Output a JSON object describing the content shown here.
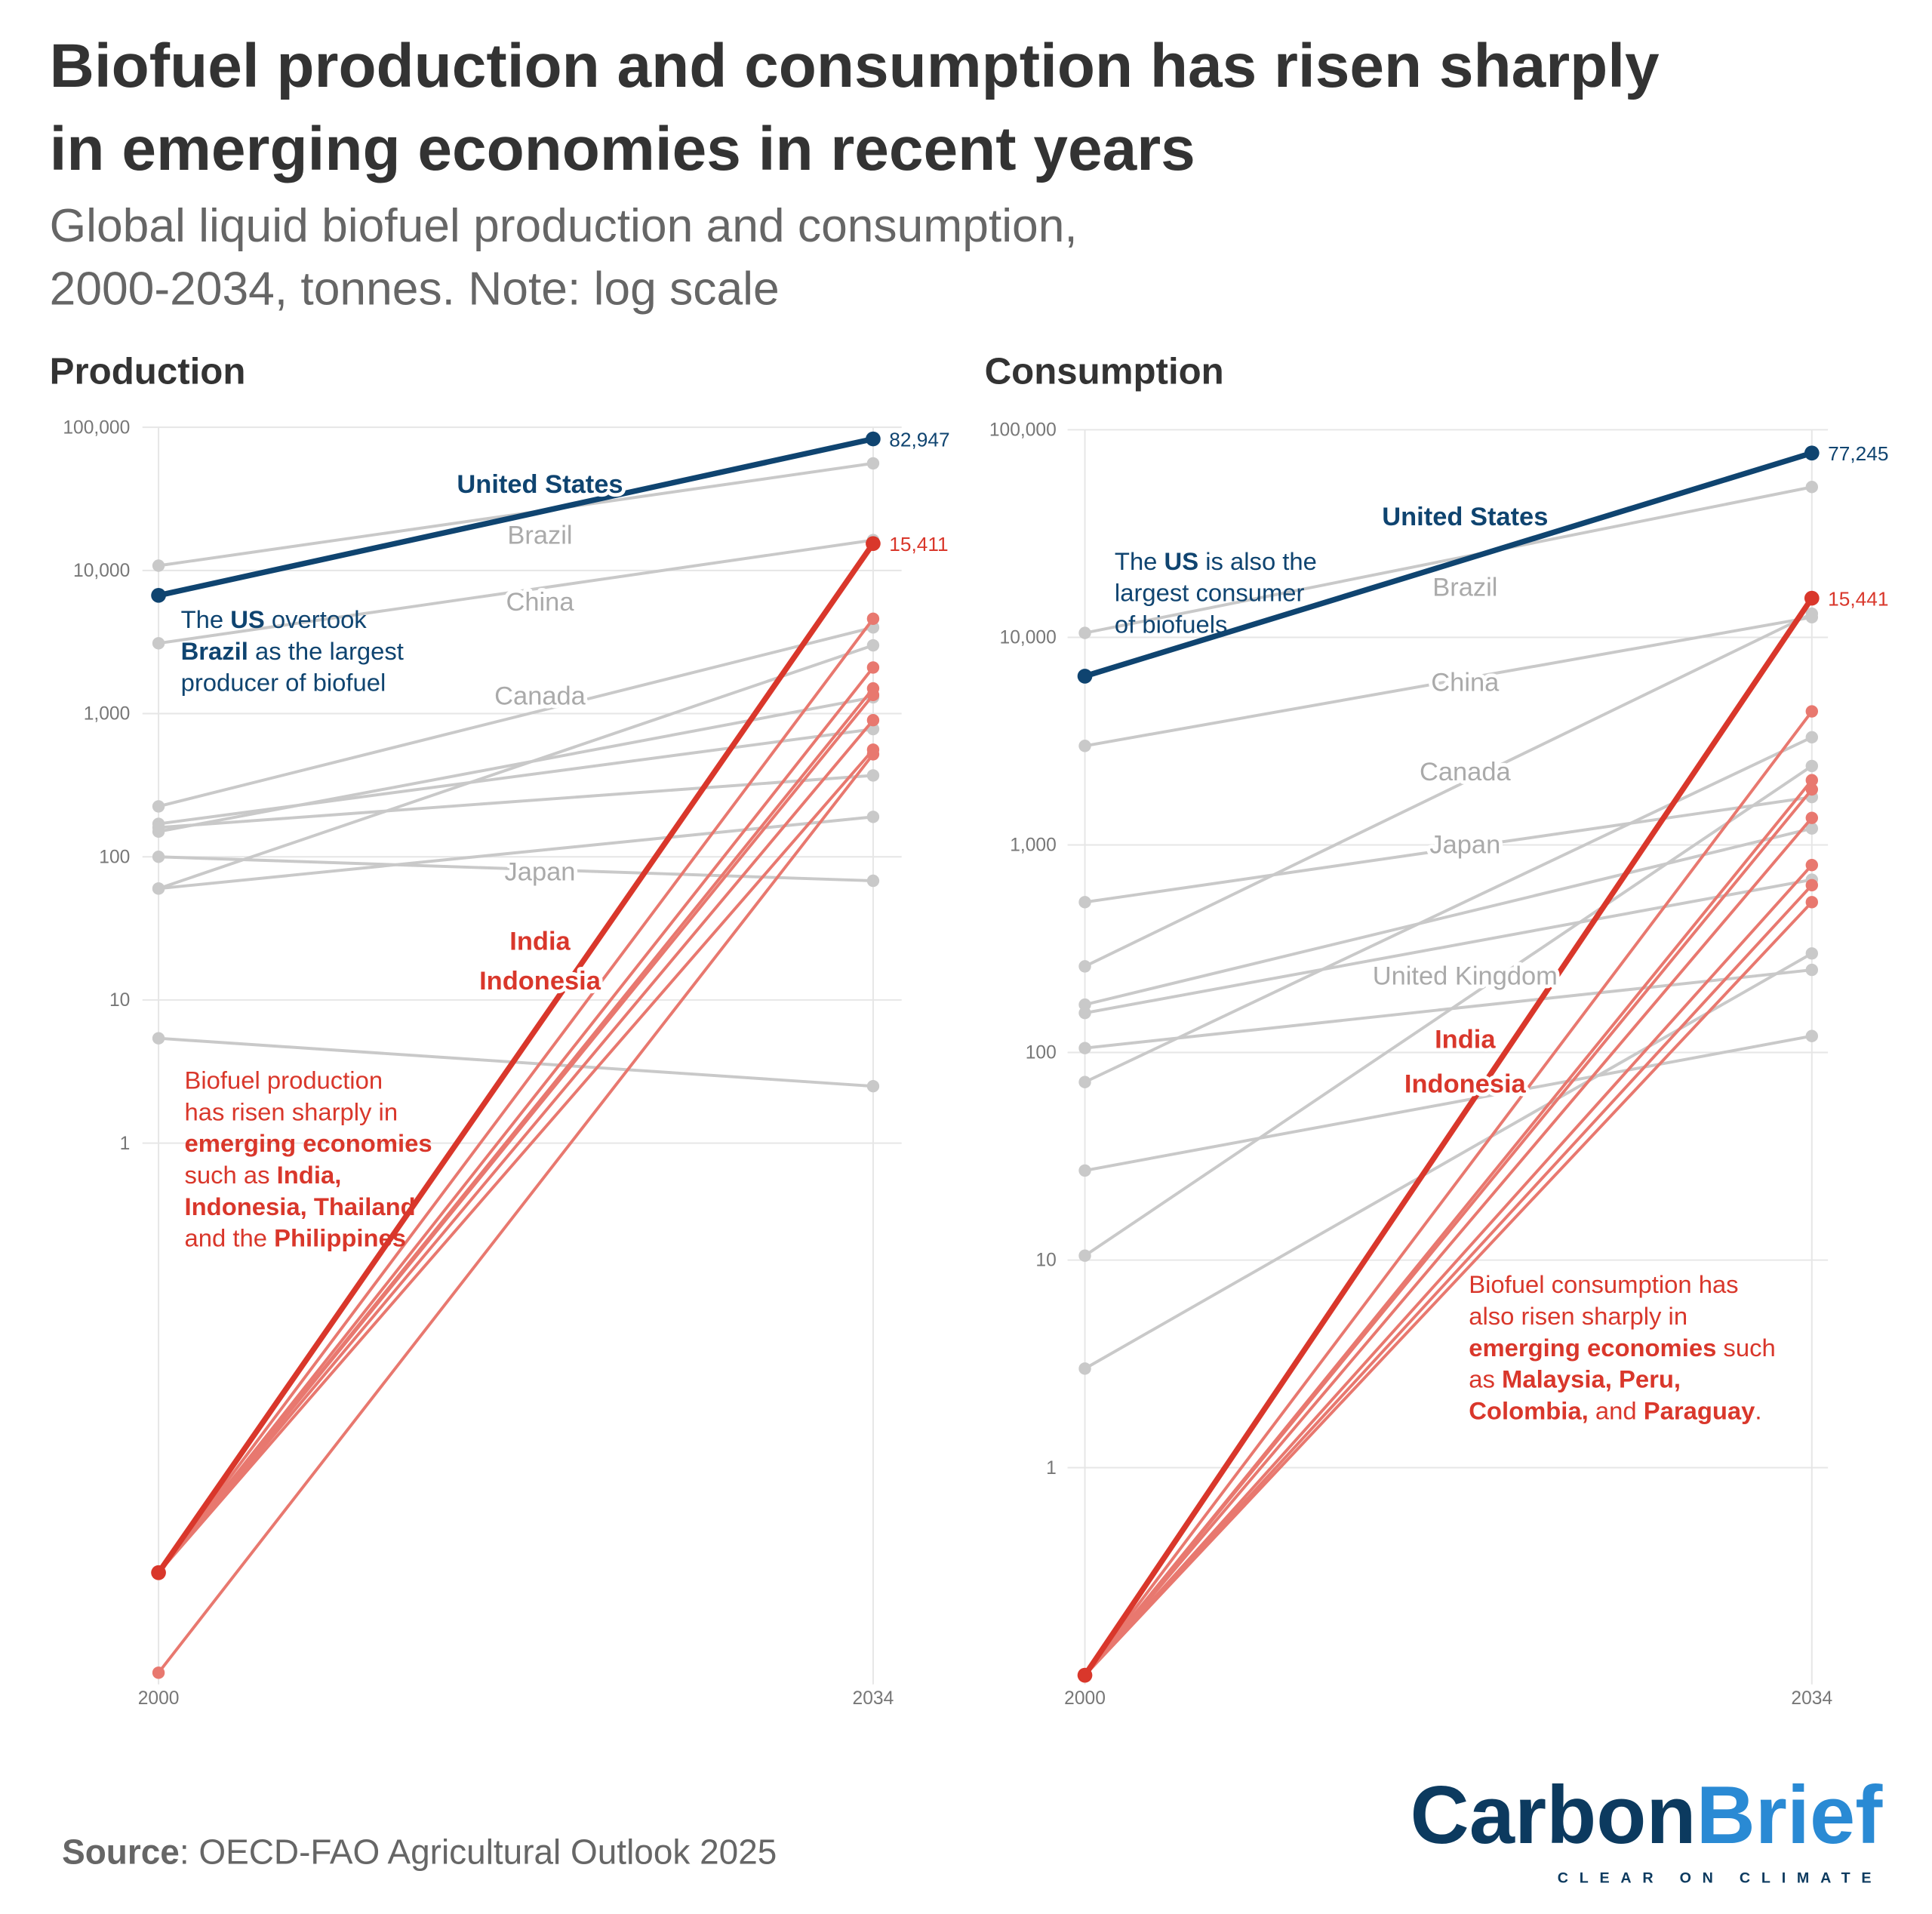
{
  "title_lines": [
    "Biofuel production and consumption has risen sharply",
    "in emerging economies in recent years"
  ],
  "subtitle_lines": [
    "Global liquid biofuel production and consumption,",
    "2000-2034, tonnes. Note: log scale"
  ],
  "source": {
    "label": "Source",
    "text": ": OECD-FAO Agricultural Outlook 2025"
  },
  "logo": {
    "word1": "Carbon",
    "word2": "Brief",
    "tagline": "CLEAR ON CLIMATE",
    "color1": "#0c3a5f",
    "color2": "#2a8ad4"
  },
  "colors": {
    "us": "#0f4470",
    "highlight": "#d9372b",
    "emerging": "#e8786f",
    "other": "#c9c9c9",
    "grid": "#e6e6e6"
  },
  "chart_data": [
    {
      "type": "line",
      "title": "Production",
      "x": [
        2000,
        2034
      ],
      "x_tick_labels": [
        "2000",
        "2034"
      ],
      "yscale": "log",
      "ylim": [
        0.0002,
        100000
      ],
      "y_ticks": [
        1,
        10,
        100,
        1000,
        10000,
        100000
      ],
      "y_tick_labels": [
        "1",
        "10",
        "100",
        "1,000",
        "10,000",
        "100,000"
      ],
      "grid": true,
      "series": [
        {
          "name": "United States",
          "group": "us",
          "values": [
            6700,
            82947
          ],
          "end_label": "82,947"
        },
        {
          "name": "Brazil",
          "group": "other",
          "values": [
            10800,
            56000
          ]
        },
        {
          "name": "China",
          "group": "other",
          "values": [
            3100,
            16300
          ]
        },
        {
          "name": "Canada",
          "group": "other",
          "values": [
            225,
            4000
          ]
        },
        {
          "group": "other",
          "values": [
            60,
            3000
          ]
        },
        {
          "group": "other",
          "values": [
            150,
            1300
          ]
        },
        {
          "group": "other",
          "values": [
            170,
            780
          ]
        },
        {
          "group": "other",
          "values": [
            160,
            370
          ]
        },
        {
          "group": "other",
          "values": [
            60,
            190
          ]
        },
        {
          "name": "Japan",
          "group": "other",
          "values": [
            100,
            68
          ]
        },
        {
          "group": "other",
          "values": [
            5.4,
            2.5
          ]
        },
        {
          "group": "emerging",
          "values": [
            0.001,
            4600
          ]
        },
        {
          "group": "emerging",
          "values": [
            0.001,
            2100
          ]
        },
        {
          "group": "emerging",
          "values": [
            0.001,
            1500
          ]
        },
        {
          "group": "emerging",
          "values": [
            0.001,
            1350
          ]
        },
        {
          "group": "emerging",
          "values": [
            0.001,
            900
          ]
        },
        {
          "group": "emerging",
          "values": [
            0.001,
            560
          ]
        },
        {
          "group": "emerging",
          "values": [
            0.0002,
            520
          ]
        },
        {
          "name": "India",
          "group": "highlight",
          "values": [
            0.001,
            15411
          ],
          "end_label": "15,411"
        }
      ],
      "extra_labels": [
        "Indonesia"
      ],
      "annotations": [
        {
          "color": "us",
          "lines": [
            [
              {
                "t": "The "
              },
              {
                "t": "US",
                "b": true
              },
              {
                "t": " overtook"
              }
            ],
            [
              {
                "t": "Brazil",
                "b": true
              },
              {
                "t": " as the largest"
              }
            ],
            [
              {
                "t": "producer of biofuel"
              }
            ]
          ]
        },
        {
          "color": "highlight",
          "lines": [
            [
              {
                "t": "Biofuel production"
              }
            ],
            [
              {
                "t": "has risen sharply in"
              }
            ],
            [
              {
                "t": "emerging economies",
                "b": true
              }
            ],
            [
              {
                "t": "such as "
              },
              {
                "t": "India,",
                "b": true
              }
            ],
            [
              {
                "t": "Indonesia, Thailand",
                "b": true
              }
            ],
            [
              {
                "t": "and the "
              },
              {
                "t": "Philippines",
                "b": true
              }
            ]
          ]
        }
      ]
    },
    {
      "type": "line",
      "title": "Consumption",
      "x": [
        2000,
        2034
      ],
      "x_tick_labels": [
        "2000",
        "2034"
      ],
      "yscale": "log",
      "ylim": [
        0.1,
        100000
      ],
      "y_ticks": [
        1,
        10,
        100,
        1000,
        10000,
        100000
      ],
      "y_tick_labels": [
        "1",
        "10",
        "100",
        "1,000",
        "10,000",
        "100,000"
      ],
      "grid": true,
      "series": [
        {
          "name": "United States",
          "group": "us",
          "values": [
            6500,
            77245
          ],
          "end_label": "77,245"
        },
        {
          "name": "Brazil",
          "group": "other",
          "values": [
            10500,
            53000
          ]
        },
        {
          "name": "China",
          "group": "other",
          "values": [
            3000,
            12500
          ]
        },
        {
          "name": "Canada",
          "group": "other",
          "values": [
            260,
            13000
          ]
        },
        {
          "name": "Japan",
          "group": "other",
          "values": [
            530,
            1700
          ]
        },
        {
          "group": "other",
          "values": [
            170,
            1200
          ]
        },
        {
          "group": "other",
          "values": [
            155,
            680
          ]
        },
        {
          "name": "United Kingdom",
          "group": "other",
          "values": [
            105,
            250
          ]
        },
        {
          "group": "other",
          "values": [
            72,
            3300
          ]
        },
        {
          "group": "other",
          "values": [
            27,
            120
          ]
        },
        {
          "group": "other",
          "values": [
            10.5,
            2400
          ]
        },
        {
          "group": "other",
          "values": [
            3,
            300
          ]
        },
        {
          "group": "emerging",
          "values": [
            0.1,
            4400
          ]
        },
        {
          "group": "emerging",
          "values": [
            0.1,
            2050
          ]
        },
        {
          "group": "emerging",
          "values": [
            0.1,
            1850
          ]
        },
        {
          "group": "emerging",
          "values": [
            0.1,
            1350
          ]
        },
        {
          "group": "emerging",
          "values": [
            0.1,
            800
          ]
        },
        {
          "group": "emerging",
          "values": [
            0.1,
            640
          ]
        },
        {
          "group": "emerging",
          "values": [
            0.1,
            530
          ]
        },
        {
          "name": "India",
          "group": "highlight",
          "values": [
            0.1,
            15441
          ],
          "end_label": "15,441"
        }
      ],
      "extra_labels": [
        "Indonesia"
      ],
      "annotations": [
        {
          "color": "us",
          "lines": [
            [
              {
                "t": "The "
              },
              {
                "t": "US",
                "b": true
              },
              {
                "t": " is also the"
              }
            ],
            [
              {
                "t": "largest consumer"
              }
            ],
            [
              {
                "t": "of biofuels"
              }
            ]
          ]
        },
        {
          "color": "highlight",
          "lines": [
            [
              {
                "t": "Biofuel consumption has"
              }
            ],
            [
              {
                "t": "also risen sharply in"
              }
            ],
            [
              {
                "t": "emerging economies",
                "b": true
              },
              {
                "t": " such"
              }
            ],
            [
              {
                "t": "as "
              },
              {
                "t": "Malaysia, Peru,",
                "b": true
              }
            ],
            [
              {
                "t": "Colombia,",
                "b": true
              },
              {
                "t": " and "
              },
              {
                "t": "Paraguay",
                "b": true
              },
              {
                "t": "."
              }
            ]
          ]
        }
      ]
    }
  ]
}
